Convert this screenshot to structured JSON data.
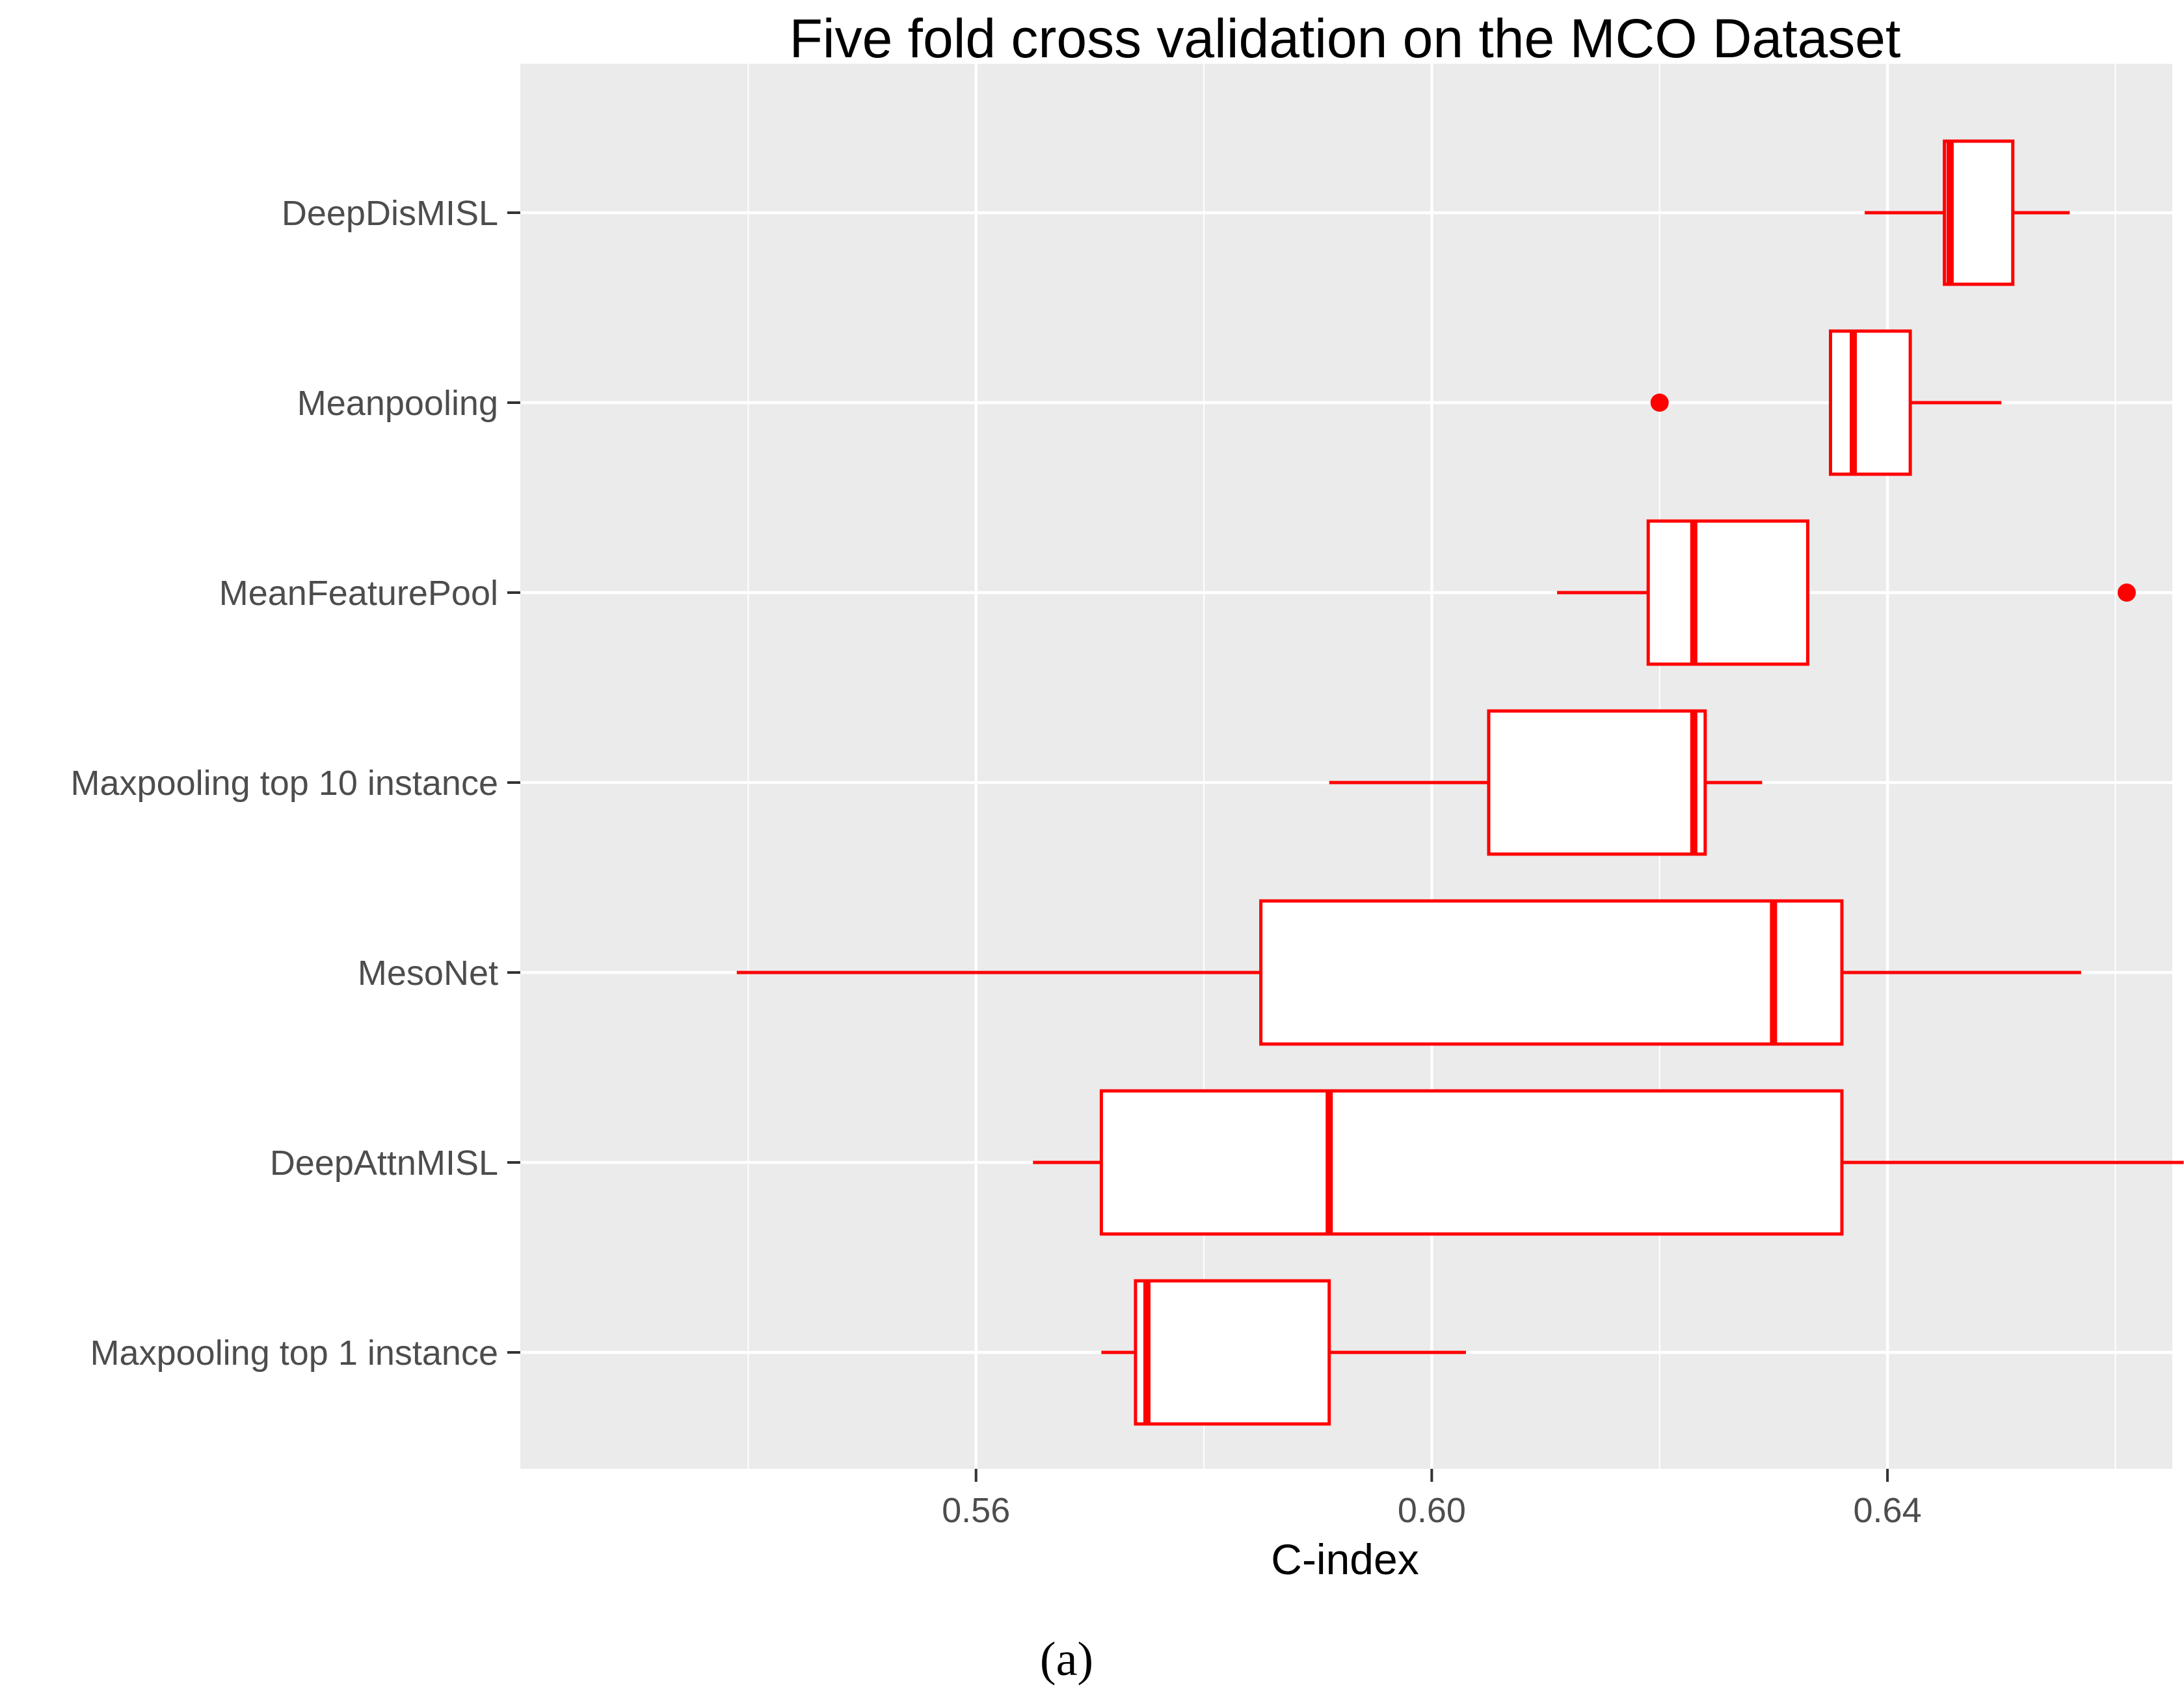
{
  "chart_data": {
    "type": "boxplot",
    "title": "Five fold  cross validation on the MCO Dataset",
    "xlabel": "C-index",
    "ylabel": "",
    "orientation": "horizontal",
    "xlim": [
      0.52,
      0.665
    ],
    "xticks": [
      0.56,
      0.6,
      0.64
    ],
    "xtick_labels": [
      "0.56",
      "0.60",
      "0.64"
    ],
    "grid": true,
    "panel_color": "#ebebeb",
    "grid_color": "#ffffff",
    "box_stroke": "#ff0000",
    "box_fill": "#ffffff",
    "series": [
      {
        "name": "DeepDisMISL",
        "whisker_low": 0.638,
        "q1": 0.645,
        "median": 0.6455,
        "q3": 0.651,
        "whisker_high": 0.656,
        "outliers": []
      },
      {
        "name": "Meanpooling",
        "whisker_low": 0.635,
        "q1": 0.635,
        "median": 0.637,
        "q3": 0.642,
        "whisker_high": 0.65,
        "outliers": [
          0.62
        ]
      },
      {
        "name": "MeanFeaturePool",
        "whisker_low": 0.611,
        "q1": 0.619,
        "median": 0.623,
        "q3": 0.633,
        "whisker_high": 0.633,
        "outliers": [
          0.661
        ]
      },
      {
        "name": "Maxpooling top 10 instance",
        "whisker_low": 0.591,
        "q1": 0.605,
        "median": 0.623,
        "q3": 0.624,
        "whisker_high": 0.629,
        "outliers": []
      },
      {
        "name": "MesoNet",
        "whisker_low": 0.539,
        "q1": 0.585,
        "median": 0.63,
        "q3": 0.636,
        "whisker_high": 0.657,
        "outliers": []
      },
      {
        "name": "DeepAttnMISL",
        "whisker_low": 0.565,
        "q1": 0.571,
        "median": 0.591,
        "q3": 0.636,
        "whisker_high": 0.666,
        "outliers": []
      },
      {
        "name": "Maxpooling top 1 instance",
        "whisker_low": 0.571,
        "q1": 0.574,
        "median": 0.575,
        "q3": 0.591,
        "whisker_high": 0.603,
        "outliers": []
      }
    ]
  },
  "caption": "(a)"
}
